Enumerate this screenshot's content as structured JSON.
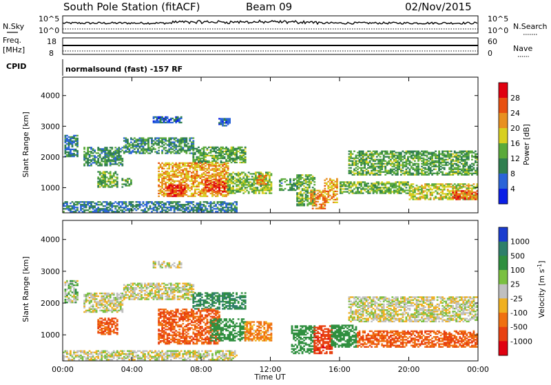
{
  "header": {
    "station": "South Pole Station (fitACF)",
    "beam": "Beam 09",
    "date": "02/Nov/2015"
  },
  "panels": {
    "nsky": {
      "label": "N.Sky",
      "right_label": "N.Search",
      "ticks_left": [
        "10^5",
        "10^0"
      ],
      "ticks_right": [
        "10^5",
        "10^0"
      ]
    },
    "freq": {
      "label_top": "Freq.",
      "label_unit": "[MHz]",
      "ticks_left": [
        "18",
        "8"
      ],
      "ticks_right": [
        "60",
        "0"
      ],
      "right_label": "Nave"
    },
    "cpid": {
      "label": "CPID",
      "text": "normalsound (fast) -157 RF"
    }
  },
  "chart_data": [
    {
      "type": "heatmap",
      "quantity": "Power",
      "ylabel": "Slant Range [km]",
      "xlabel": "Time UT",
      "xlim": [
        "00:00",
        "24:00"
      ],
      "ylim": [
        180,
        4600
      ],
      "x_ticks": [
        "00:00",
        "04:00",
        "08:00",
        "12:00",
        "16:00",
        "20:00",
        "00:00"
      ],
      "y_ticks": [
        1000,
        2000,
        3000,
        4000
      ],
      "colorbar": {
        "label": "Power [dB]",
        "ticks": [
          "4",
          "8",
          "12",
          "16",
          "20",
          "24",
          "28"
        ],
        "range": [
          0,
          30
        ],
        "colors": [
          "#0a1ee6",
          "#2a64d8",
          "#2f7f4f",
          "#5aaa3a",
          "#d8d020",
          "#e89020",
          "#e85010",
          "#e00010"
        ]
      },
      "regions": [
        {
          "t0": 0.1,
          "t1": 0.8,
          "r0": 2000,
          "r1": 2700,
          "level": 8
        },
        {
          "t0": 1.2,
          "t1": 3.5,
          "r0": 1700,
          "r1": 2300,
          "level": 10
        },
        {
          "t0": 3.5,
          "t1": 7.5,
          "r0": 2100,
          "r1": 2600,
          "level": 10
        },
        {
          "t0": 7.5,
          "t1": 10.5,
          "r0": 1800,
          "r1": 2300,
          "level": 12
        },
        {
          "t0": 5.2,
          "t1": 6.8,
          "r0": 3100,
          "r1": 3300,
          "level": 6
        },
        {
          "t0": 9.0,
          "t1": 9.6,
          "r0": 3000,
          "r1": 3250,
          "level": 6
        },
        {
          "t0": 2.0,
          "t1": 3.2,
          "r0": 1000,
          "r1": 1500,
          "level": 13
        },
        {
          "t0": 3.4,
          "t1": 4.0,
          "r0": 1000,
          "r1": 1300,
          "level": 12
        },
        {
          "t0": 5.5,
          "t1": 9.5,
          "r0": 700,
          "r1": 1800,
          "level": 20
        },
        {
          "t0": 6.0,
          "t1": 7.0,
          "r0": 700,
          "r1": 1100,
          "level": 26
        },
        {
          "t0": 8.2,
          "t1": 9.4,
          "r0": 850,
          "r1": 1300,
          "level": 25
        },
        {
          "t0": 9.5,
          "t1": 12.0,
          "r0": 800,
          "r1": 1500,
          "level": 14
        },
        {
          "t0": 11.2,
          "t1": 11.7,
          "r0": 1100,
          "r1": 1400,
          "level": 22
        },
        {
          "t0": 12.5,
          "t1": 13.5,
          "r0": 900,
          "r1": 1300,
          "level": 11
        },
        {
          "t0": 13.5,
          "t1": 14.5,
          "r0": 400,
          "r1": 1400,
          "level": 13
        },
        {
          "t0": 14.3,
          "t1": 15.1,
          "r0": 300,
          "r1": 900,
          "level": 22
        },
        {
          "t0": 15.1,
          "t1": 15.8,
          "r0": 500,
          "r1": 1300,
          "level": 20
        },
        {
          "t0": 16.0,
          "t1": 20.0,
          "r0": 800,
          "r1": 1200,
          "level": 13
        },
        {
          "t0": 20.0,
          "t1": 24.0,
          "r0": 600,
          "r1": 1100,
          "level": 16
        },
        {
          "t0": 22.5,
          "t1": 24.0,
          "r0": 600,
          "r1": 900,
          "level": 24
        },
        {
          "t0": 16.5,
          "t1": 24.0,
          "r0": 1400,
          "r1": 2200,
          "level": 12
        },
        {
          "t0": 0.0,
          "t1": 10.0,
          "r0": 200,
          "r1": 550,
          "level": 8
        }
      ]
    },
    {
      "type": "heatmap",
      "quantity": "Velocity",
      "ylabel": "Slant Range [km]",
      "xlabel": "Time UT",
      "xlim": [
        "00:00",
        "24:00"
      ],
      "ylim": [
        180,
        4600
      ],
      "x_ticks": [
        "00:00",
        "04:00",
        "08:00",
        "12:00",
        "16:00",
        "20:00",
        "00:00"
      ],
      "y_ticks": [
        1000,
        2000,
        3000,
        4000
      ],
      "colorbar": {
        "label": "Velocity [m s^-1]",
        "ticks": [
          "1000",
          "500",
          "100",
          "25",
          "-25",
          "-100",
          "-500",
          "-1000"
        ],
        "colors": [
          "#1a3ccf",
          "#2e7f6a",
          "#2f8f3f",
          "#7ac040",
          "#c0c0c0",
          "#f0b020",
          "#f07010",
          "#e84010",
          "#e00010"
        ]
      },
      "regions": [
        {
          "t0": 0.1,
          "t1": 0.8,
          "r0": 2000,
          "r1": 2700,
          "v": 25
        },
        {
          "t0": 1.2,
          "t1": 3.5,
          "r0": 1700,
          "r1": 2300,
          "v": 0
        },
        {
          "t0": 3.5,
          "t1": 7.5,
          "r0": 2100,
          "r1": 2600,
          "v": 0
        },
        {
          "t0": 7.5,
          "t1": 10.5,
          "r0": 1800,
          "r1": 2300,
          "v": 300
        },
        {
          "t0": 5.2,
          "t1": 6.8,
          "r0": 3100,
          "r1": 3300,
          "v": 0
        },
        {
          "t0": 2.0,
          "t1": 3.2,
          "r0": 1000,
          "r1": 1500,
          "v": -300
        },
        {
          "t0": 5.5,
          "t1": 9.0,
          "r0": 700,
          "r1": 1800,
          "v": -300
        },
        {
          "t0": 8.5,
          "t1": 10.5,
          "r0": 800,
          "r1": 1500,
          "v": 200
        },
        {
          "t0": 10.5,
          "t1": 12.0,
          "r0": 800,
          "r1": 1400,
          "v": -80
        },
        {
          "t0": 13.2,
          "t1": 14.5,
          "r0": 400,
          "r1": 1300,
          "v": 200
        },
        {
          "t0": 14.5,
          "t1": 15.5,
          "r0": 400,
          "r1": 1300,
          "v": -700
        },
        {
          "t0": 15.5,
          "t1": 17.0,
          "r0": 600,
          "r1": 1300,
          "v": 200
        },
        {
          "t0": 17.0,
          "t1": 24.0,
          "r0": 600,
          "r1": 1100,
          "v": -300
        },
        {
          "t0": 16.5,
          "t1": 24.0,
          "r0": 1400,
          "r1": 2200,
          "v": 0
        },
        {
          "t0": 0.0,
          "t1": 10.0,
          "r0": 200,
          "r1": 500,
          "v": 0
        }
      ]
    }
  ]
}
